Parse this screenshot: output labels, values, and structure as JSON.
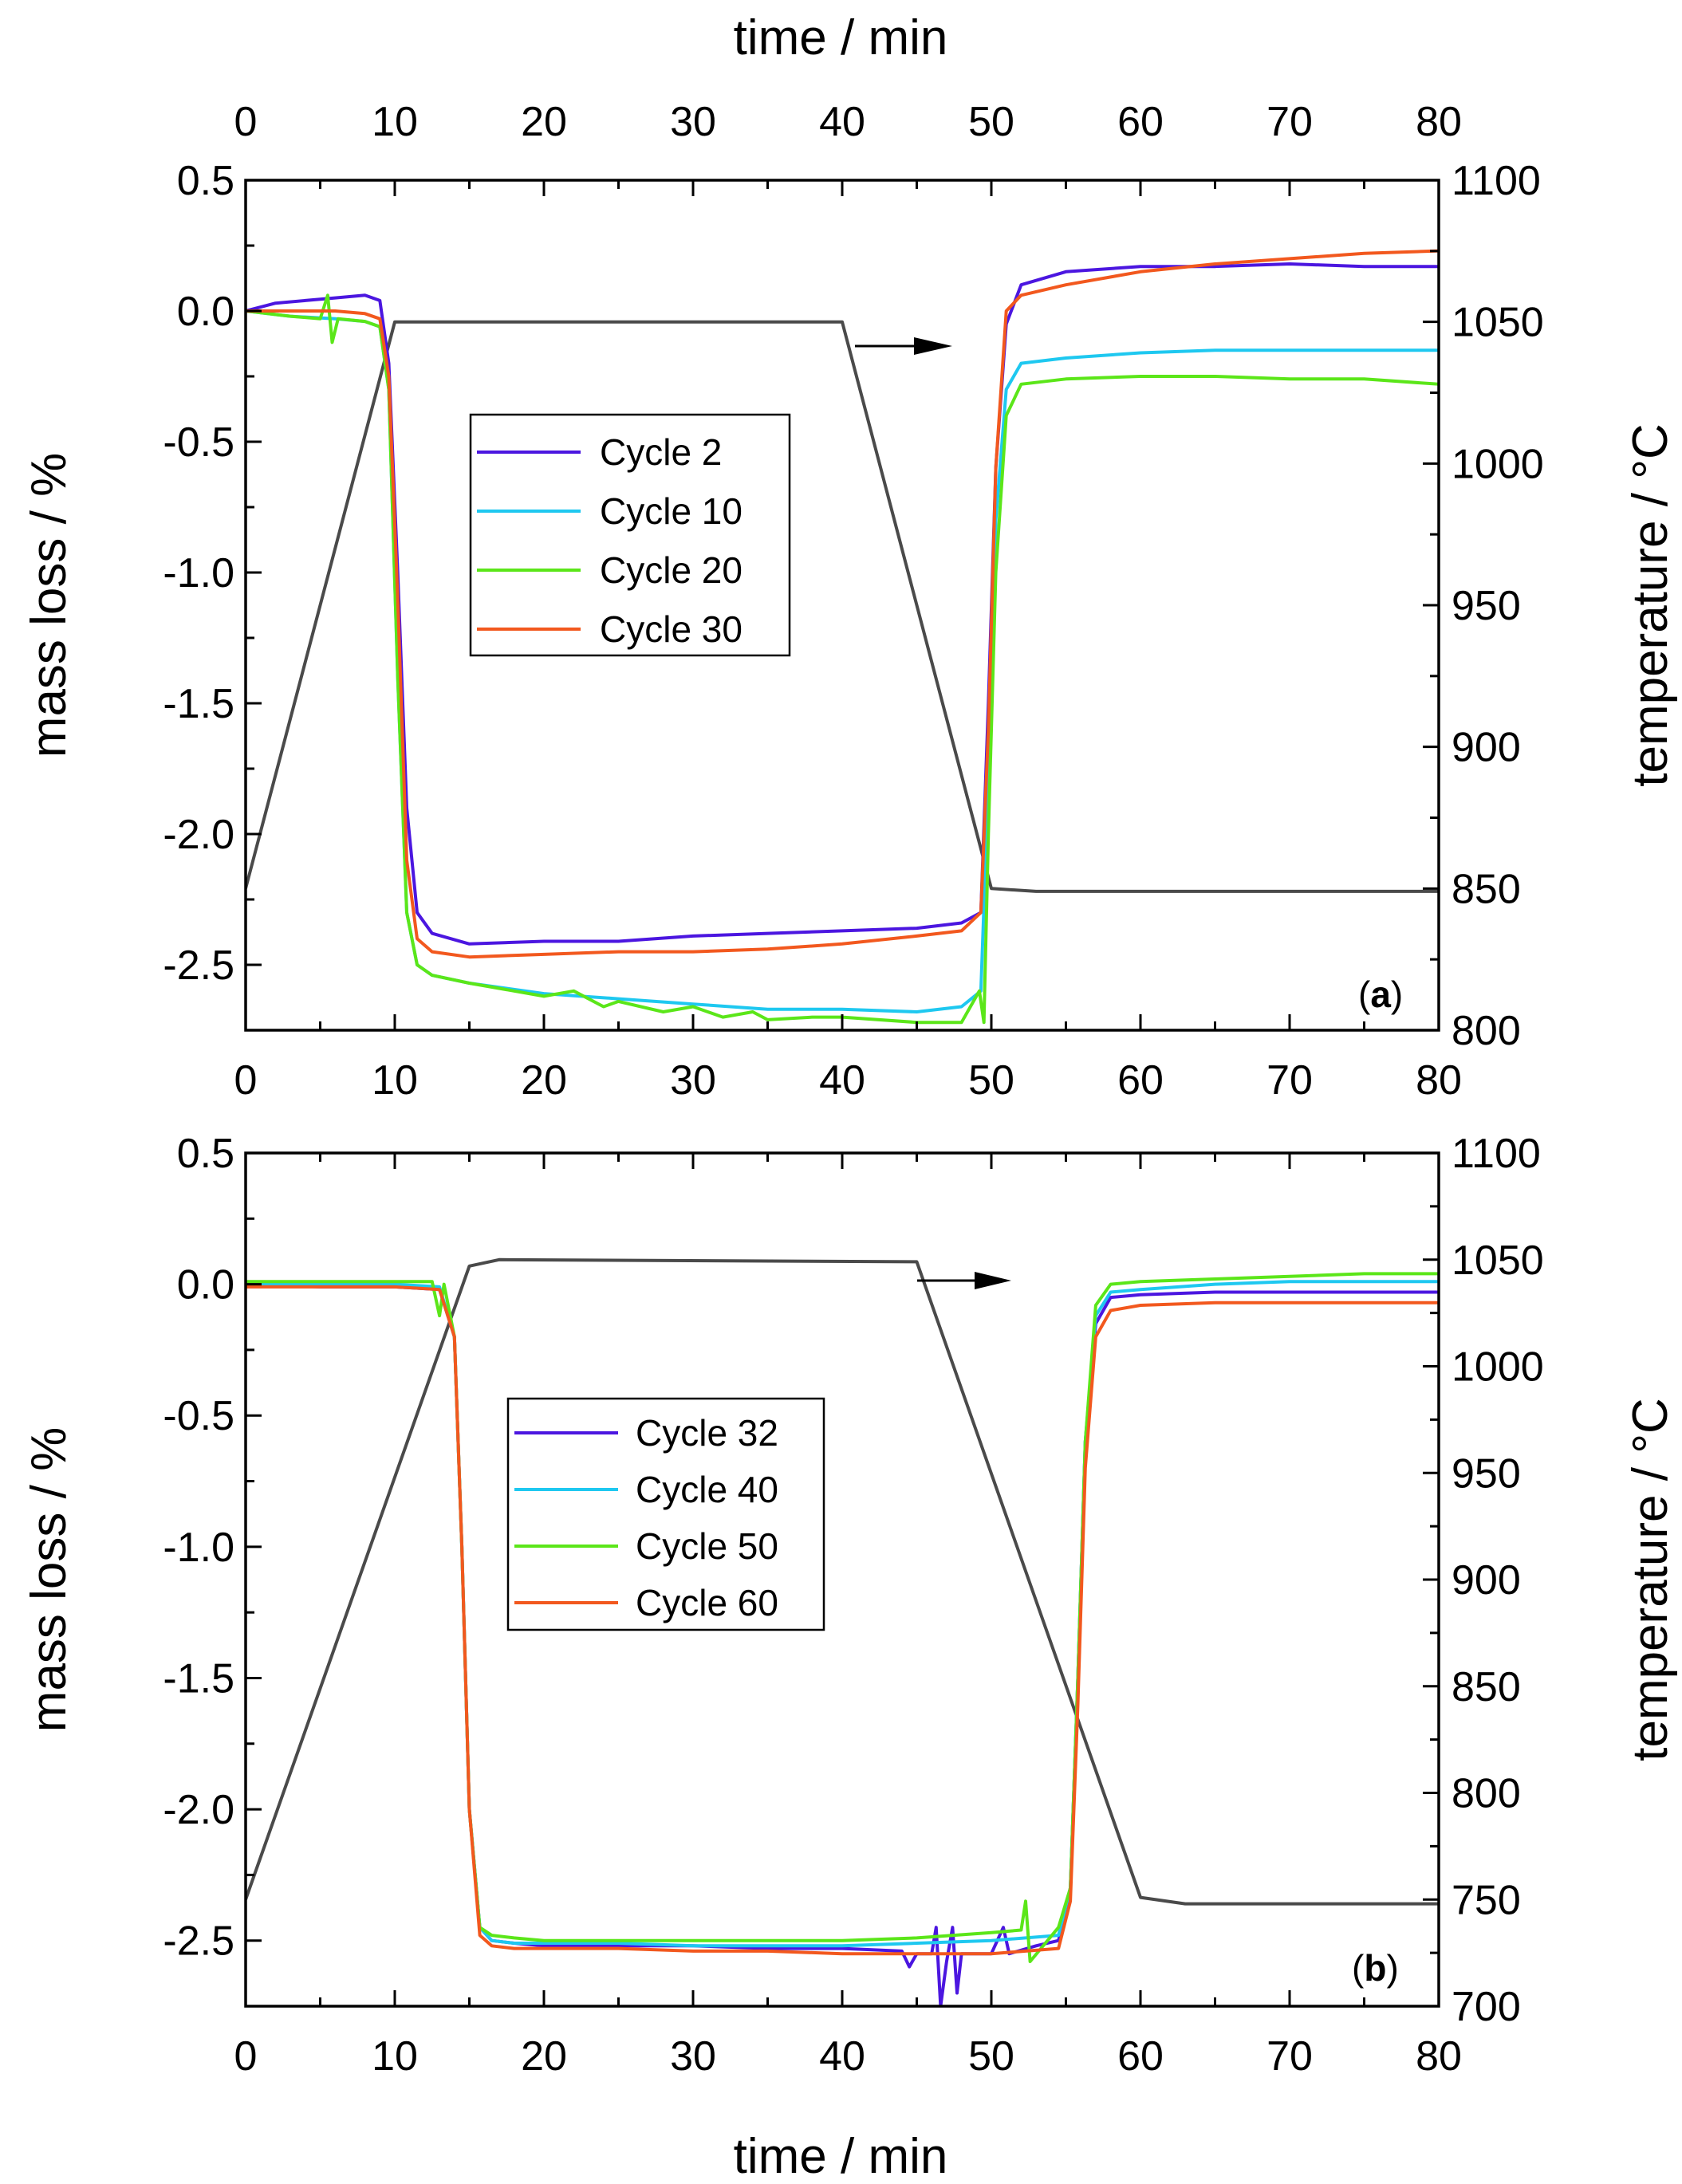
{
  "chart_data": [
    {
      "type": "line",
      "panel_label": "a",
      "top_xlabel": "time / min",
      "xlabel": "",
      "ylabel": "mass loss / %",
      "y2label": "temperature / °C",
      "xlim": [
        0,
        80
      ],
      "ylim": [
        -2.75,
        0.5
      ],
      "y2lim": [
        800,
        1100
      ],
      "xticks": [
        0,
        10,
        20,
        30,
        40,
        50,
        60,
        70,
        80
      ],
      "xtick_labels": [
        "0",
        "10",
        "20",
        "30",
        "40",
        "50",
        "60",
        "70",
        "80"
      ],
      "yticks": [
        0.5,
        0.0,
        -0.5,
        -1.0,
        -1.5,
        -2.0,
        -2.5
      ],
      "ytick_labels": [
        "0.5",
        "0.0",
        "-0.5",
        "-1.0",
        "-1.5",
        "-2.0",
        "-2.5"
      ],
      "y2ticks": [
        800,
        850,
        900,
        950,
        1000,
        1050,
        1100
      ],
      "y2tick_labels": [
        "800",
        "850",
        "900",
        "950",
        "1000",
        "1050",
        "1100"
      ],
      "series": [
        {
          "name": "Cycle 2",
          "color": "#4b16e0",
          "x": [
            0,
            2,
            4,
            6,
            8,
            9,
            9.6,
            10.2,
            10.8,
            11.5,
            12.5,
            15,
            20,
            25,
            30,
            35,
            40,
            45,
            48,
            49.3,
            49.8,
            50.3,
            51,
            52,
            55,
            60,
            65,
            70,
            75,
            80
          ],
          "y": [
            0.0,
            0.03,
            0.04,
            0.05,
            0.06,
            0.04,
            -0.2,
            -1.0,
            -1.9,
            -2.3,
            -2.38,
            -2.42,
            -2.41,
            -2.41,
            -2.39,
            -2.38,
            -2.37,
            -2.36,
            -2.34,
            -2.3,
            -1.5,
            -0.6,
            -0.05,
            0.1,
            0.15,
            0.17,
            0.17,
            0.18,
            0.17,
            0.17
          ]
        },
        {
          "name": "Cycle 10",
          "color": "#1ec8f0",
          "x": [
            0,
            3,
            6,
            8,
            9,
            9.6,
            10.2,
            10.8,
            11.5,
            12.5,
            15,
            20,
            25,
            30,
            35,
            40,
            45,
            48,
            49.3,
            49.8,
            50.3,
            51,
            52,
            55,
            60,
            65,
            70,
            75,
            80
          ],
          "y": [
            0.0,
            -0.02,
            -0.03,
            -0.04,
            -0.06,
            -0.3,
            -1.4,
            -2.3,
            -2.5,
            -2.54,
            -2.57,
            -2.61,
            -2.63,
            -2.65,
            -2.67,
            -2.67,
            -2.68,
            -2.66,
            -2.6,
            -1.8,
            -0.8,
            -0.3,
            -0.2,
            -0.18,
            -0.16,
            -0.15,
            -0.15,
            -0.15,
            -0.15
          ]
        },
        {
          "name": "Cycle 20",
          "color": "#5be619",
          "x": [
            0,
            3,
            5,
            5.5,
            5.8,
            6.2,
            8,
            9,
            9.6,
            10.2,
            10.8,
            11.5,
            12.5,
            15,
            20,
            22,
            24,
            25,
            28,
            30,
            32,
            34,
            35,
            38,
            40,
            45,
            48,
            49.2,
            49.5,
            49.8,
            50.3,
            51,
            52,
            55,
            60,
            65,
            70,
            75,
            80
          ],
          "y": [
            0.0,
            -0.02,
            -0.03,
            0.06,
            -0.12,
            -0.03,
            -0.04,
            -0.06,
            -0.3,
            -1.4,
            -2.3,
            -2.5,
            -2.54,
            -2.57,
            -2.62,
            -2.6,
            -2.66,
            -2.64,
            -2.68,
            -2.66,
            -2.7,
            -2.68,
            -2.71,
            -2.7,
            -2.7,
            -2.72,
            -2.72,
            -2.6,
            -2.72,
            -2.0,
            -1.0,
            -0.4,
            -0.28,
            -0.26,
            -0.25,
            -0.25,
            -0.26,
            -0.26,
            -0.28
          ]
        },
        {
          "name": "Cycle 30",
          "color": "#f2581e",
          "x": [
            0,
            3,
            6,
            8,
            9,
            9.6,
            10.2,
            10.8,
            11.5,
            12.5,
            15,
            20,
            25,
            30,
            35,
            40,
            45,
            48,
            49.3,
            49.8,
            50.3,
            51,
            52,
            55,
            60,
            65,
            70,
            75,
            80
          ],
          "y": [
            0.0,
            0.0,
            0.0,
            -0.01,
            -0.03,
            -0.25,
            -1.1,
            -2.1,
            -2.4,
            -2.45,
            -2.47,
            -2.46,
            -2.45,
            -2.45,
            -2.44,
            -2.42,
            -2.39,
            -2.37,
            -2.3,
            -1.6,
            -0.6,
            0.0,
            0.06,
            0.1,
            0.15,
            0.18,
            0.2,
            0.22,
            0.23
          ]
        }
      ],
      "temperature": {
        "name": "temperature",
        "color": "#4a4a4a",
        "x": [
          0,
          10,
          40,
          50,
          53,
          60,
          70,
          80
        ],
        "y": [
          850,
          1050,
          1050,
          850,
          849,
          849,
          849,
          849
        ]
      },
      "legend": [
        "Cycle 2",
        "Cycle 10",
        "Cycle 20",
        "Cycle 30"
      ],
      "legend_location": "center-left",
      "annotation": "arrow pointing right to the temperature axis"
    },
    {
      "type": "line",
      "panel_label": "b",
      "top_xlabel": "",
      "xlabel": "time / min",
      "ylabel": "mass loss / %",
      "y2label": "temperature / °C",
      "xlim": [
        0,
        80
      ],
      "ylim": [
        -2.75,
        0.5
      ],
      "y2lim": [
        700,
        1100
      ],
      "xticks": [
        0,
        10,
        20,
        30,
        40,
        50,
        60,
        70,
        80
      ],
      "xtick_labels": [
        "0",
        "10",
        "20",
        "30",
        "40",
        "50",
        "60",
        "70",
        "80"
      ],
      "yticks": [
        0.5,
        0.0,
        -0.5,
        -1.0,
        -1.5,
        -2.0,
        -2.5
      ],
      "ytick_labels": [
        "0.5",
        "0.0",
        "-0.5",
        "-1.0",
        "-1.5",
        "-2.0",
        "-2.5"
      ],
      "y2ticks": [
        700,
        750,
        800,
        850,
        900,
        950,
        1000,
        1050,
        1100
      ],
      "y2tick_labels": [
        "700",
        "750",
        "800",
        "850",
        "900",
        "950",
        "1000",
        "1050",
        "1100"
      ],
      "series": [
        {
          "name": "Cycle 32",
          "color": "#4b16e0",
          "x": [
            0,
            5,
            10,
            13,
            14,
            14.5,
            15,
            15.7,
            16.5,
            18,
            20,
            25,
            30,
            35,
            40,
            44,
            44.5,
            45,
            46,
            46.3,
            46.6,
            47,
            47.4,
            47.7,
            48,
            50,
            50.8,
            51.2,
            53,
            54.5,
            55.3,
            55.8,
            56.3,
            57,
            58,
            60,
            65,
            70,
            75,
            80
          ],
          "y": [
            0.0,
            -0.01,
            -0.01,
            -0.02,
            -0.2,
            -1.0,
            -2.0,
            -2.45,
            -2.5,
            -2.51,
            -2.52,
            -2.52,
            -2.52,
            -2.53,
            -2.53,
            -2.54,
            -2.6,
            -2.55,
            -2.55,
            -2.45,
            -2.75,
            -2.58,
            -2.45,
            -2.7,
            -2.55,
            -2.55,
            -2.45,
            -2.55,
            -2.52,
            -2.5,
            -2.3,
            -1.5,
            -0.6,
            -0.15,
            -0.05,
            -0.04,
            -0.03,
            -0.03,
            -0.03,
            -0.03
          ]
        },
        {
          "name": "Cycle 40",
          "color": "#1ec8f0",
          "x": [
            0,
            5,
            10,
            13,
            14,
            14.5,
            15,
            15.7,
            16.5,
            18,
            20,
            25,
            30,
            35,
            40,
            45,
            50,
            54.5,
            55.3,
            55.8,
            56.3,
            57,
            58,
            60,
            65,
            70,
            75,
            80
          ],
          "y": [
            0.0,
            0.0,
            0.0,
            -0.01,
            -0.2,
            -1.0,
            -2.0,
            -2.45,
            -2.5,
            -2.51,
            -2.51,
            -2.51,
            -2.52,
            -2.52,
            -2.52,
            -2.51,
            -2.5,
            -2.48,
            -2.3,
            -1.5,
            -0.6,
            -0.12,
            -0.03,
            -0.02,
            0.0,
            0.01,
            0.01,
            0.01
          ]
        },
        {
          "name": "Cycle 50",
          "color": "#5be619",
          "x": [
            0,
            5,
            10,
            12.5,
            13,
            13.3,
            14,
            14.5,
            15,
            15.7,
            16.5,
            18,
            20,
            25,
            30,
            35,
            40,
            45,
            50,
            52,
            52.3,
            52.6,
            54.5,
            55.3,
            55.8,
            56.3,
            57,
            58,
            60,
            65,
            70,
            75,
            80
          ],
          "y": [
            0.01,
            0.01,
            0.01,
            0.01,
            -0.12,
            0.0,
            -0.2,
            -1.0,
            -2.0,
            -2.45,
            -2.48,
            -2.49,
            -2.5,
            -2.5,
            -2.5,
            -2.5,
            -2.5,
            -2.49,
            -2.47,
            -2.46,
            -2.35,
            -2.58,
            -2.45,
            -2.3,
            -1.5,
            -0.6,
            -0.08,
            0.0,
            0.01,
            0.02,
            0.03,
            0.04,
            0.04
          ]
        },
        {
          "name": "Cycle 60",
          "color": "#f2581e",
          "x": [
            0,
            5,
            10,
            13,
            14,
            14.5,
            15,
            15.7,
            16.5,
            18,
            20,
            25,
            30,
            35,
            40,
            45,
            50,
            54.5,
            55.3,
            55.8,
            56.3,
            57,
            58,
            60,
            65,
            70,
            75,
            80
          ],
          "y": [
            -0.01,
            -0.01,
            -0.01,
            -0.02,
            -0.2,
            -1.0,
            -2.0,
            -2.48,
            -2.52,
            -2.53,
            -2.53,
            -2.53,
            -2.54,
            -2.54,
            -2.55,
            -2.55,
            -2.55,
            -2.53,
            -2.35,
            -1.6,
            -0.7,
            -0.2,
            -0.1,
            -0.08,
            -0.07,
            -0.07,
            -0.07,
            -0.07
          ]
        }
      ],
      "temperature": {
        "name": "temperature",
        "color": "#4a4a4a",
        "x": [
          0,
          15,
          17,
          45,
          60,
          63,
          70,
          80
        ],
        "y": [
          750,
          1047,
          1050,
          1049,
          751,
          748,
          748,
          748
        ]
      },
      "legend": [
        "Cycle 32",
        "Cycle 40",
        "Cycle 50",
        "Cycle 60"
      ],
      "legend_location": "center-left",
      "annotation": "arrow pointing right to the temperature axis"
    }
  ]
}
